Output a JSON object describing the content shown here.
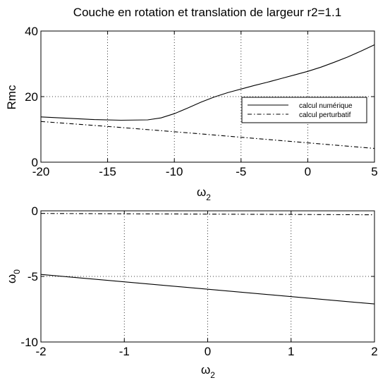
{
  "chart_data": [
    {
      "type": "line",
      "title": "Couche en rotation et translation de largeur r2=1.1",
      "xlabel": "ω",
      "xlabel_sub": "2",
      "ylabel": "Rmc",
      "ylabel_sub": "",
      "xlim": [
        -20,
        5
      ],
      "ylim": [
        0,
        40
      ],
      "xticks": [
        -20,
        -15,
        -10,
        -5,
        0,
        5
      ],
      "yticks": [
        0,
        20,
        40
      ],
      "grid": true,
      "legend_position": "right",
      "series": [
        {
          "name": "calcul numérique",
          "style": "solid",
          "x": [
            -20,
            -18,
            -16,
            -14,
            -12,
            -11,
            -10,
            -9,
            -8,
            -7,
            -6,
            -5,
            -4,
            -3,
            -2,
            -1,
            0,
            1,
            2,
            3,
            4,
            5
          ],
          "y": [
            13.8,
            13.4,
            13.0,
            12.8,
            12.9,
            13.5,
            14.8,
            16.5,
            18.3,
            19.9,
            21.2,
            22.3,
            23.4,
            24.4,
            25.5,
            26.6,
            27.7,
            29.0,
            30.5,
            32.1,
            33.9,
            35.8
          ]
        },
        {
          "name": "calcul perturbatif",
          "style": "dashdot",
          "x": [
            -20,
            -15,
            -10,
            -5,
            0,
            5
          ],
          "y": [
            12.4,
            10.9,
            9.3,
            7.6,
            5.9,
            4.2
          ]
        }
      ]
    },
    {
      "type": "line",
      "title": "",
      "xlabel": "ω",
      "xlabel_sub": "2",
      "ylabel": "ω",
      "ylabel_sub": "0",
      "xlim": [
        -2,
        2
      ],
      "ylim": [
        -10,
        0
      ],
      "xticks": [
        -2,
        -1,
        0,
        1,
        2
      ],
      "yticks": [
        -10,
        -5,
        0
      ],
      "grid": true,
      "series": [
        {
          "name": "",
          "style": "solid",
          "x": [
            -2,
            2
          ],
          "y": [
            -4.85,
            -7.1
          ]
        },
        {
          "name": "",
          "style": "dashdot",
          "x": [
            -2,
            2
          ],
          "y": [
            -0.2,
            -0.3
          ]
        }
      ]
    }
  ]
}
